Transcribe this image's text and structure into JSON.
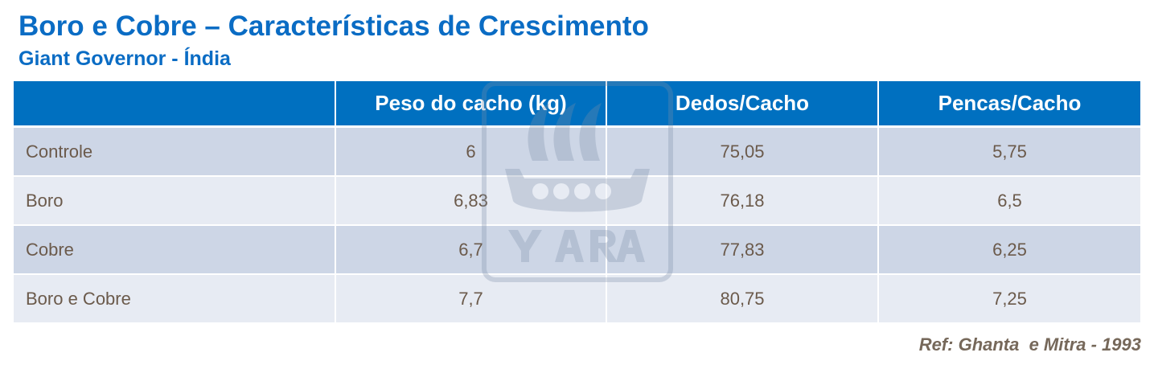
{
  "title": "Boro e Cobre – Características de Crescimento",
  "subtitle": "Giant Governor - Índia",
  "table": {
    "headers": [
      "",
      "Peso do cacho (kg)",
      "Dedos/Cacho",
      "Pencas/Cacho"
    ],
    "rows": [
      [
        "Controle",
        "6",
        "75,05",
        "5,75"
      ],
      [
        "Boro",
        "6,83",
        "76,18",
        "6,5"
      ],
      [
        "Cobre",
        "6,7",
        "77,83",
        "6,25"
      ],
      [
        "Boro e Cobre",
        "7,7",
        "80,75",
        "7,25"
      ]
    ]
  },
  "watermark": {
    "text": "YARA",
    "icon": "yara-viking-ship-logo"
  },
  "reference": "Ref: Ghanta  e Mitra - 1993",
  "colors": {
    "title": "#0a6cc4",
    "header_bg": "#0070c0",
    "row_odd": "#cdd6e6",
    "row_even": "#e7ebf3",
    "text": "#6b5a4b"
  }
}
